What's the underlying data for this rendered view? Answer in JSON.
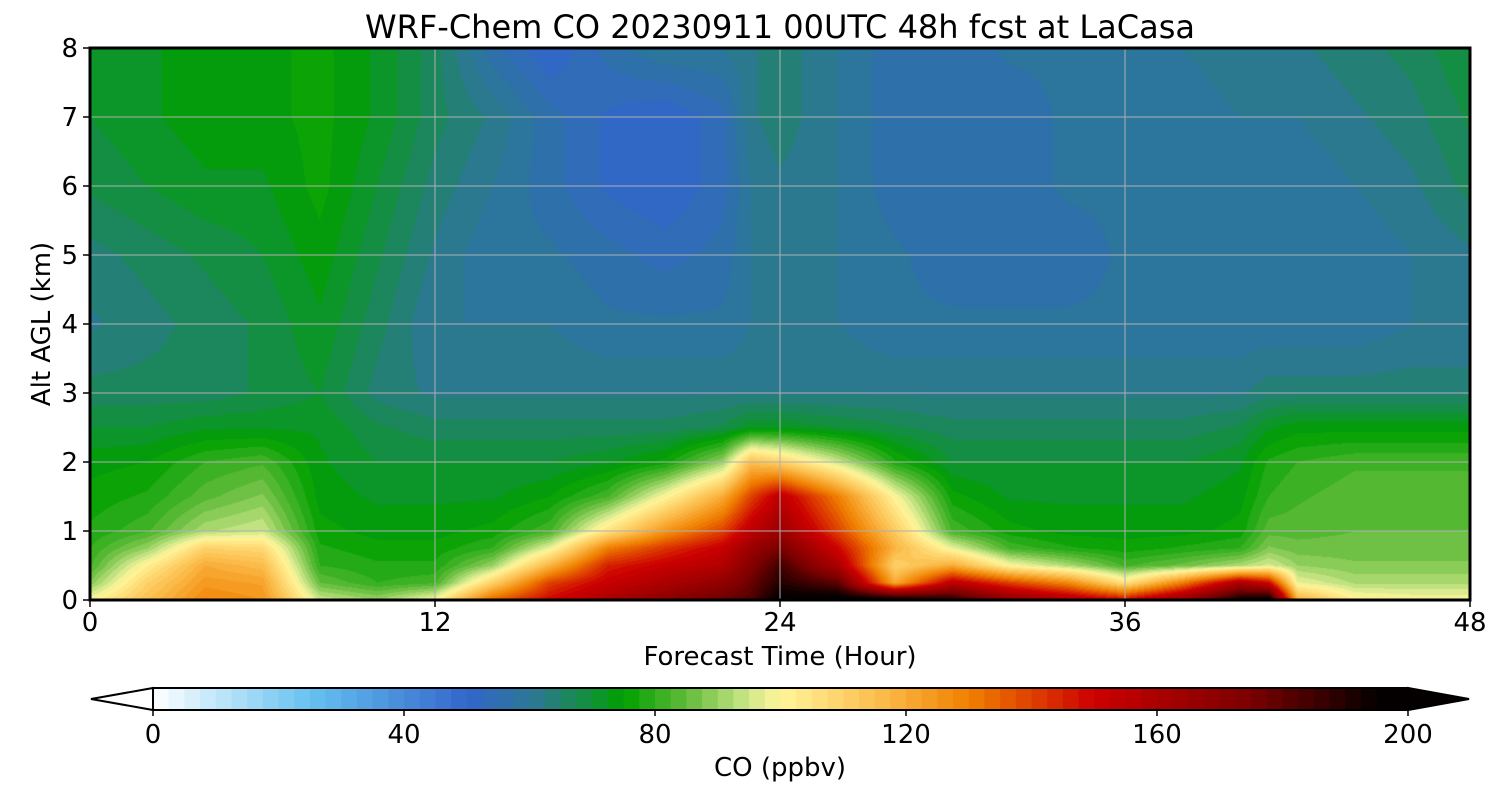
{
  "chart_data": {
    "type": "heatmap",
    "title": "WRF-Chem CO  20230911 00UTC 48h fcst at LaCasa",
    "xlabel": "Forecast Time (Hour)",
    "ylabel": "Alt AGL (km)",
    "xlim": [
      0,
      48
    ],
    "ylim": [
      0,
      8
    ],
    "x_ticks": [
      0,
      12,
      24,
      36,
      48
    ],
    "y_ticks": [
      0,
      1,
      2,
      3,
      4,
      5,
      6,
      7,
      8
    ],
    "grid": true,
    "colorbar": {
      "label": "CO  (ppbv)",
      "min": 0,
      "max": 200,
      "ticks": [
        0,
        40,
        80,
        120,
        160,
        200
      ],
      "extend": "both",
      "orientation": "horizontal",
      "color_stops": [
        {
          "v": 0,
          "c": "#ffffff"
        },
        {
          "v": 25,
          "c": "#66c2f0"
        },
        {
          "v": 50,
          "c": "#3366cc"
        },
        {
          "v": 62,
          "c": "#2a7a8a"
        },
        {
          "v": 75,
          "c": "#00a000"
        },
        {
          "v": 85,
          "c": "#60bb3a"
        },
        {
          "v": 95,
          "c": "#cfe88a"
        },
        {
          "v": 100,
          "c": "#fff59a"
        },
        {
          "v": 115,
          "c": "#fcc050"
        },
        {
          "v": 130,
          "c": "#f08000"
        },
        {
          "v": 150,
          "c": "#cc0000"
        },
        {
          "v": 175,
          "c": "#7a0000"
        },
        {
          "v": 195,
          "c": "#050000"
        }
      ]
    },
    "forecast_hours": [
      0,
      2,
      4,
      6,
      8,
      10,
      12,
      14,
      16,
      18,
      20,
      22,
      23,
      24,
      26,
      28,
      30,
      32,
      34,
      36,
      38,
      40,
      41,
      42,
      44,
      46,
      48
    ],
    "altitudes_km": [
      0,
      0.25,
      0.5,
      0.75,
      1,
      1.5,
      2,
      2.5,
      3,
      4,
      5,
      6,
      7,
      8
    ],
    "co_ppbv": [
      [
        100,
        115,
        128,
        125,
        95,
        90,
        100,
        135,
        150,
        160,
        170,
        178,
        182,
        198,
        200,
        200,
        190,
        170,
        160,
        150,
        168,
        195,
        200,
        120,
        102,
        100,
        100
      ],
      [
        88,
        110,
        124,
        122,
        85,
        80,
        82,
        110,
        140,
        152,
        160,
        168,
        178,
        190,
        180,
        120,
        155,
        140,
        128,
        105,
        130,
        160,
        150,
        98,
        92,
        92,
        92
      ],
      [
        82,
        102,
        120,
        116,
        80,
        78,
        78,
        90,
        118,
        145,
        152,
        158,
        172,
        185,
        160,
        110,
        120,
        100,
        92,
        82,
        86,
        92,
        96,
        90,
        88,
        88,
        88
      ],
      [
        80,
        90,
        110,
        108,
        78,
        76,
        76,
        80,
        98,
        130,
        142,
        152,
        165,
        175,
        150,
        118,
        98,
        82,
        78,
        76,
        78,
        80,
        88,
        86,
        86,
        86,
        86
      ],
      [
        78,
        82,
        92,
        95,
        76,
        74,
        74,
        76,
        82,
        105,
        125,
        140,
        155,
        165,
        140,
        112,
        82,
        76,
        74,
        74,
        74,
        76,
        84,
        84,
        85,
        85,
        85
      ],
      [
        76,
        78,
        84,
        88,
        74,
        72,
        72,
        72,
        75,
        82,
        100,
        120,
        140,
        155,
        130,
        100,
        76,
        72,
        72,
        72,
        72,
        74,
        80,
        82,
        84,
        84,
        84
      ],
      [
        74,
        75,
        80,
        82,
        73,
        70,
        70,
        70,
        70,
        72,
        76,
        90,
        115,
        110,
        95,
        78,
        70,
        70,
        70,
        70,
        70,
        72,
        78,
        80,
        82,
        82,
        82
      ],
      [
        70,
        70,
        72,
        72,
        72,
        68,
        66,
        66,
        66,
        66,
        66,
        68,
        72,
        72,
        70,
        68,
        66,
        66,
        66,
        66,
        66,
        68,
        72,
        74,
        74,
        74,
        74
      ],
      [
        66,
        66,
        66,
        68,
        70,
        64,
        62,
        62,
        62,
        62,
        62,
        62,
        62,
        62,
        62,
        62,
        62,
        62,
        62,
        62,
        62,
        62,
        64,
        64,
        64,
        64,
        64
      ],
      [
        62,
        64,
        66,
        68,
        72,
        66,
        60,
        60,
        60,
        58,
        58,
        58,
        60,
        60,
        60,
        58,
        58,
        58,
        58,
        58,
        58,
        58,
        58,
        58,
        58,
        60,
        60
      ],
      [
        64,
        66,
        68,
        70,
        74,
        68,
        62,
        58,
        58,
        56,
        54,
        56,
        60,
        62,
        60,
        58,
        56,
        56,
        56,
        58,
        58,
        58,
        58,
        58,
        58,
        60,
        62
      ],
      [
        68,
        70,
        72,
        72,
        76,
        70,
        64,
        60,
        56,
        52,
        50,
        54,
        60,
        62,
        60,
        56,
        56,
        56,
        58,
        58,
        58,
        58,
        58,
        58,
        60,
        62,
        66
      ],
      [
        70,
        72,
        74,
        74,
        76,
        72,
        66,
        62,
        56,
        52,
        50,
        54,
        62,
        64,
        60,
        56,
        56,
        56,
        58,
        58,
        58,
        60,
        60,
        60,
        62,
        64,
        68
      ],
      [
        70,
        72,
        74,
        74,
        76,
        72,
        66,
        56,
        50,
        56,
        60,
        60,
        62,
        64,
        60,
        56,
        56,
        58,
        58,
        58,
        60,
        62,
        62,
        62,
        64,
        66,
        70
      ]
    ]
  }
}
